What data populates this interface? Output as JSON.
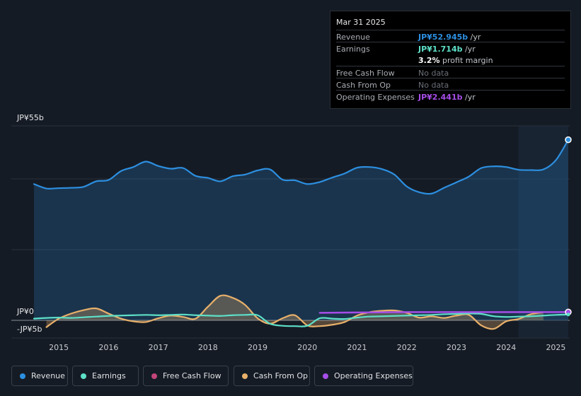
{
  "tooltip": {
    "date": "Mar 31 2025",
    "rows": [
      {
        "label": "Revenue",
        "value": "JP¥52.945b",
        "unit": "/yr"
      },
      {
        "label": "Earnings",
        "value": "JP¥1.714b",
        "unit": "/yr"
      },
      {
        "label": "",
        "value": "3.2%",
        "unit": "profit margin"
      },
      {
        "label": "Free Cash Flow",
        "value": "No data",
        "unit": ""
      },
      {
        "label": "Cash From Op",
        "value": "No data",
        "unit": ""
      },
      {
        "label": "Operating Expenses",
        "value": "JP¥2.441b",
        "unit": "/yr"
      }
    ]
  },
  "legend": [
    {
      "label": "Revenue"
    },
    {
      "label": "Earnings"
    },
    {
      "label": "Free Cash Flow"
    },
    {
      "label": "Cash From Op"
    },
    {
      "label": "Operating Expenses"
    }
  ],
  "colors": {
    "background": "#151b24",
    "revenue": "#2d8fe0",
    "earnings": "#5ee0c8",
    "free_cash_flow": "#c4457a",
    "cash_from_op": "#e8b06a",
    "operating_expenses": "#a64ee8",
    "forecast_band": "#1c2c3e"
  },
  "chart_data": {
    "type": "line",
    "ylabels": [
      "JP¥55b",
      "JP¥0",
      "-JP¥5b"
    ],
    "yticks": [
      55,
      0,
      -5
    ],
    "ylim": [
      -5,
      55
    ],
    "xlim": [
      2014.5,
      2025.25
    ],
    "xticks": [
      2015,
      2016,
      2017,
      2018,
      2019,
      2020,
      2021,
      2022,
      2023,
      2024,
      2025
    ],
    "xtick_labels": [
      "2015",
      "2016",
      "2017",
      "2018",
      "2019",
      "2020",
      "2021",
      "2022",
      "2023",
      "2024",
      "2025"
    ],
    "grid": "horizontal",
    "legend_position": "bottom",
    "highlight_range": [
      2024.25,
      2025.25
    ],
    "series": [
      {
        "name": "Revenue",
        "fill": true,
        "x": [
          2014.5,
          2014.75,
          2015.0,
          2015.25,
          2015.5,
          2015.75,
          2016.0,
          2016.25,
          2016.5,
          2016.75,
          2017.0,
          2017.25,
          2017.5,
          2017.75,
          2018.0,
          2018.25,
          2018.5,
          2018.75,
          2019.0,
          2019.25,
          2019.5,
          2019.75,
          2020.0,
          2020.25,
          2020.5,
          2020.75,
          2021.0,
          2021.25,
          2021.5,
          2021.75,
          2022.0,
          2022.25,
          2022.5,
          2022.75,
          2023.0,
          2023.25,
          2023.5,
          2023.75,
          2024.0,
          2024.25,
          2024.5,
          2024.75,
          2025.0,
          2025.25
        ],
        "values": [
          40.0,
          38.7,
          38.8,
          38.9,
          39.2,
          40.8,
          41.2,
          43.8,
          45.0,
          46.6,
          45.3,
          44.5,
          44.7,
          42.4,
          41.8,
          40.8,
          42.3,
          42.8,
          44.0,
          44.3,
          41.3,
          41.1,
          40.0,
          40.6,
          41.9,
          43.1,
          44.8,
          45.0,
          44.4,
          42.8,
          39.3,
          37.6,
          37.2,
          38.9,
          40.5,
          42.2,
          44.7,
          45.2,
          45.0,
          44.2,
          44.1,
          44.3,
          47.0,
          53.0
        ]
      },
      {
        "name": "Earnings",
        "x": [
          2014.5,
          2014.75,
          2015.0,
          2015.25,
          2015.5,
          2015.75,
          2016.0,
          2016.25,
          2016.5,
          2016.75,
          2017.0,
          2017.25,
          2017.5,
          2017.75,
          2018.0,
          2018.25,
          2018.5,
          2018.75,
          2019.0,
          2019.25,
          2019.5,
          2019.75,
          2020.0,
          2020.25,
          2020.5,
          2020.75,
          2021.0,
          2021.25,
          2021.5,
          2021.75,
          2022.0,
          2022.25,
          2022.5,
          2022.75,
          2023.0,
          2023.25,
          2023.5,
          2023.75,
          2024.0,
          2024.25,
          2024.5,
          2024.75,
          2025.0,
          2025.25
        ],
        "values": [
          0.5,
          0.7,
          0.8,
          0.7,
          0.9,
          1.1,
          1.3,
          1.4,
          1.5,
          1.6,
          1.5,
          1.6,
          1.7,
          1.5,
          1.4,
          1.3,
          1.5,
          1.6,
          1.5,
          -1.0,
          -1.6,
          -1.7,
          -1.6,
          0.6,
          0.5,
          0.4,
          0.8,
          1.1,
          1.2,
          1.3,
          1.4,
          1.5,
          1.6,
          1.8,
          1.9,
          2.0,
          1.9,
          1.2,
          1.0,
          1.1,
          1.2,
          1.4,
          1.6,
          1.7
        ]
      },
      {
        "name": "Cash From Op",
        "fill": true,
        "x": [
          2014.75,
          2015.0,
          2015.25,
          2015.5,
          2015.75,
          2016.0,
          2016.25,
          2016.5,
          2016.75,
          2017.0,
          2017.25,
          2017.5,
          2017.75,
          2018.0,
          2018.25,
          2018.5,
          2018.75,
          2019.0,
          2019.25,
          2019.5,
          2019.75,
          2020.0,
          2020.25,
          2020.5,
          2020.75,
          2021.0,
          2021.25,
          2021.5,
          2021.75,
          2022.0,
          2022.25,
          2022.5,
          2022.75,
          2023.0,
          2023.25,
          2023.5,
          2023.75,
          2024.0,
          2024.25,
          2024.5,
          2024.75
        ],
        "values": [
          -2.0,
          0.5,
          2.0,
          3.0,
          3.5,
          2.0,
          0.5,
          -0.3,
          -0.5,
          0.6,
          1.4,
          1.0,
          0.5,
          4.0,
          7.2,
          6.6,
          4.5,
          0.6,
          -1.0,
          0.6,
          1.5,
          -1.5,
          -1.7,
          -1.3,
          -0.5,
          1.4,
          2.4,
          2.8,
          2.9,
          2.2,
          0.8,
          1.2,
          0.7,
          1.4,
          1.6,
          -1.5,
          -2.5,
          -0.3,
          0.4,
          1.8,
          2.4
        ]
      },
      {
        "name": "Operating Expenses",
        "x": [
          2020.25,
          2021.0,
          2022.0,
          2023.0,
          2024.0,
          2025.0,
          2025.25
        ],
        "values": [
          2.2,
          2.3,
          2.4,
          2.4,
          2.4,
          2.4,
          2.44
        ]
      }
    ]
  }
}
